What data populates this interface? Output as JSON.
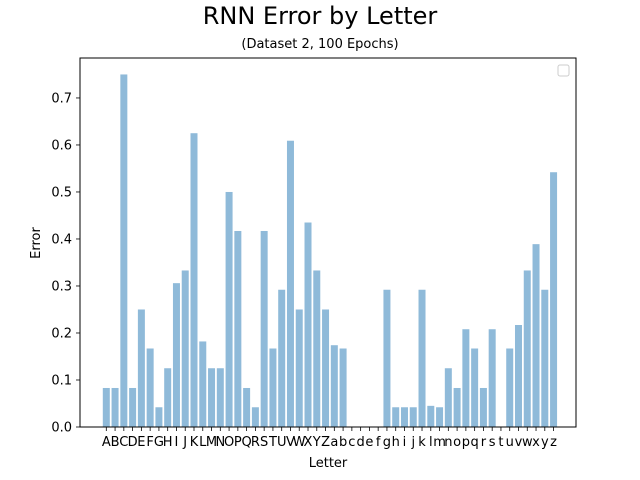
{
  "chart_data": {
    "type": "bar",
    "title": "RNN Error by Letter",
    "subtitle": "(Dataset 2, 100 Epochs)",
    "xlabel": "Letter",
    "ylabel": "Error",
    "ylim": [
      0,
      0.785
    ],
    "yticks": [
      0.0,
      0.1,
      0.2,
      0.3,
      0.4,
      0.5,
      0.6,
      0.7
    ],
    "ytick_labels": [
      "0.0",
      "0.1",
      "0.2",
      "0.3",
      "0.4",
      "0.5",
      "0.6",
      "0.7"
    ],
    "bar_color": "#8fbad9",
    "legend": "top-right (empty)",
    "grid": false,
    "categories": [
      "A",
      "B",
      "C",
      "D",
      "E",
      "F",
      "G",
      "H",
      "I",
      "J",
      "K",
      "L",
      "M",
      "N",
      "O",
      "P",
      "Q",
      "R",
      "S",
      "T",
      "U",
      "V",
      "W",
      "X",
      "Y",
      "Z",
      "a",
      "b",
      "c",
      "d",
      "e",
      "f",
      "g",
      "h",
      "i",
      "j",
      "k",
      "l",
      "m",
      "n",
      "o",
      "p",
      "q",
      "r",
      "s",
      "t",
      "u",
      "v",
      "w",
      "x",
      "y",
      "z"
    ],
    "values": [
      0.083,
      0.083,
      0.75,
      0.083,
      0.25,
      0.167,
      0.042,
      0.125,
      0.306,
      0.333,
      0.625,
      0.182,
      0.125,
      0.125,
      0.5,
      0.417,
      0.083,
      0.042,
      0.417,
      0.167,
      0.292,
      0.609,
      0.25,
      0.435,
      0.333,
      0.25,
      0.174,
      0.167,
      0,
      0,
      0,
      0,
      0.292,
      0.042,
      0.042,
      0.042,
      0.292,
      0.045,
      0.042,
      0.125,
      0.083,
      0.208,
      0.167,
      0.083,
      0.208,
      0,
      0.167,
      0.217,
      0.333,
      0.389,
      0.292,
      0.542
    ]
  }
}
